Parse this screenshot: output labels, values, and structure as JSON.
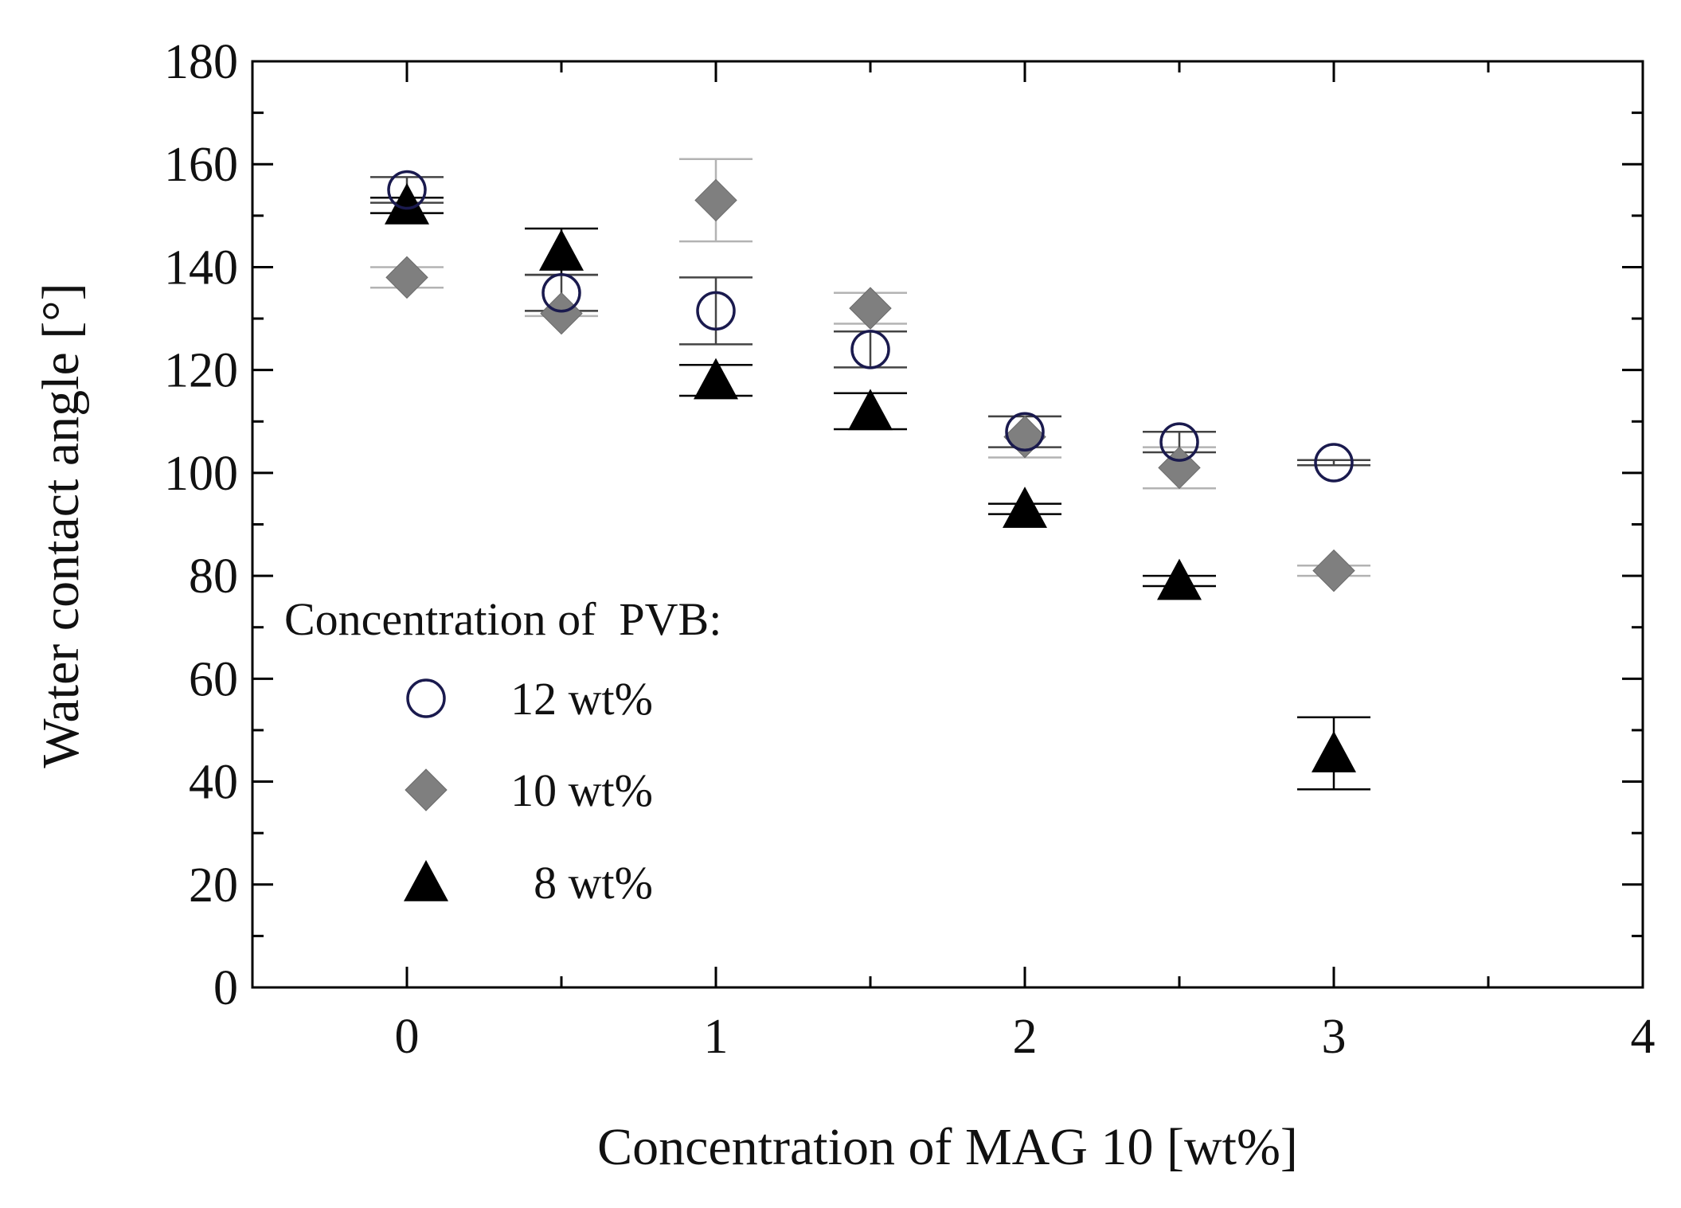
{
  "chart_data": {
    "type": "scatter",
    "title": "",
    "xlabel": "Concentration of MAG 10 [wt%]",
    "ylabel": "Water contact angle [°]",
    "xlim": [
      -0.5,
      4
    ],
    "ylim": [
      0,
      180
    ],
    "x_ticks": [
      0,
      1,
      2,
      3,
      4
    ],
    "y_ticks": [
      0,
      20,
      40,
      60,
      80,
      100,
      120,
      140,
      160,
      180
    ],
    "grid": false,
    "legend": {
      "title": "Concentration of  PVB:",
      "position": "lower-left"
    },
    "series": [
      {
        "name": "12 wt%",
        "label": "12 wt%",
        "marker": "circle",
        "color": "#1a1a4e",
        "x": [
          0,
          0.5,
          1,
          1.5,
          2,
          2.5,
          3
        ],
        "y": [
          155,
          135,
          131.5,
          124,
          108,
          106,
          102
        ],
        "err": [
          2.5,
          3.5,
          6.5,
          3.5,
          3,
          2,
          0.5
        ]
      },
      {
        "name": "10 wt%",
        "label": "10 wt%",
        "marker": "diamond",
        "color": "#7f7f7f",
        "x": [
          0,
          0.5,
          1,
          1.5,
          2,
          2.5,
          3
        ],
        "y": [
          138,
          131,
          153,
          132,
          107,
          101,
          81
        ],
        "err": [
          2,
          0.5,
          8,
          3,
          4,
          4,
          1
        ]
      },
      {
        "name": "8 wt%",
        "label": "8 wt%",
        "marker": "triangle",
        "color": "#000000",
        "x": [
          0,
          0.5,
          1,
          1.5,
          2,
          2.5,
          3
        ],
        "y": [
          152,
          143,
          118,
          112,
          93,
          79,
          45.5
        ],
        "err": [
          1.5,
          4.5,
          3,
          3.5,
          1,
          1,
          7
        ]
      }
    ]
  }
}
